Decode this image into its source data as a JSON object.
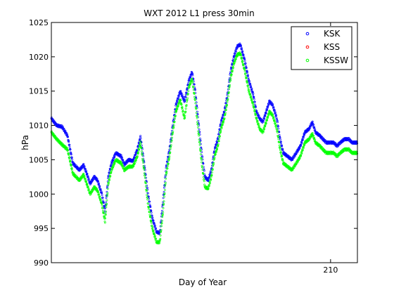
{
  "chart_data": {
    "type": "scatter",
    "title": "WXT 2012 L1 press 30min",
    "xlabel": "Day of Year",
    "ylabel": "hPa",
    "xlim": [
      184,
      212.5
    ],
    "ylim": [
      990,
      1025
    ],
    "x_ticks": [
      210
    ],
    "x_tick_labels": [
      "210"
    ],
    "y_ticks": [
      990,
      995,
      1000,
      1005,
      1010,
      1015,
      1020,
      1025
    ],
    "y_tick_labels": [
      "990",
      "995",
      "1000",
      "1005",
      "1010",
      "1015",
      "1020",
      "1025"
    ],
    "grid": false,
    "legend_position": "top-right",
    "series": [
      {
        "name": "KSK",
        "color": "#0000ff",
        "marker": "dot"
      },
      {
        "name": "KSS",
        "color": "#ff0000",
        "marker": "dot"
      },
      {
        "name": "KSSW",
        "color": "#00ff00",
        "marker": "dot"
      }
    ],
    "x": [
      184.0,
      184.5,
      185.0,
      185.5,
      186.0,
      186.3,
      186.6,
      187.0,
      187.3,
      187.6,
      188.0,
      188.3,
      188.7,
      189.0,
      189.3,
      189.6,
      190.0,
      190.5,
      190.8,
      191.2,
      191.6,
      192.0,
      192.3,
      192.6,
      193.0,
      193.4,
      193.8,
      194.1,
      194.4,
      194.7,
      195.0,
      195.3,
      195.6,
      196.0,
      196.4,
      196.8,
      197.1,
      197.4,
      197.7,
      198.0,
      198.3,
      198.6,
      198.9,
      199.2,
      199.5,
      199.8,
      200.1,
      200.4,
      200.7,
      201.0,
      201.3,
      201.6,
      202.0,
      202.4,
      202.8,
      203.1,
      203.4,
      203.7,
      204.0,
      204.3,
      204.6,
      205.0,
      205.3,
      205.6,
      206.0,
      206.4,
      206.8,
      207.2,
      207.6,
      208.0,
      208.3,
      208.6,
      209.0,
      209.3,
      209.6,
      210.0,
      210.3,
      210.6,
      210.9,
      211.3,
      211.7,
      212.0,
      212.3,
      212.5
    ],
    "ksk": [
      1011.0,
      1010.0,
      1009.8,
      1008.5,
      1004.5,
      1004.0,
      1003.5,
      1004.2,
      1003.0,
      1001.5,
      1002.5,
      1002.0,
      1000.0,
      997.5,
      1002.5,
      1004.5,
      1006.0,
      1005.5,
      1004.3,
      1005.0,
      1004.8,
      1006.5,
      1008.3,
      1005.0,
      1000.0,
      996.5,
      994.5,
      994.3,
      999.0,
      1004.0,
      1006.5,
      1010.0,
      1013.0,
      1015.0,
      1013.5,
      1016.5,
      1017.8,
      1015.0,
      1010.5,
      1006.0,
      1002.5,
      1002.0,
      1003.5,
      1006.5,
      1008.0,
      1010.5,
      1012.0,
      1014.5,
      1018.0,
      1020.0,
      1021.5,
      1021.8,
      1019.5,
      1016.5,
      1014.5,
      1012.0,
      1011.0,
      1010.5,
      1012.0,
      1013.5,
      1013.0,
      1011.0,
      1008.0,
      1006.0,
      1005.5,
      1005.0,
      1006.0,
      1007.0,
      1009.0,
      1009.5,
      1010.5,
      1009.0,
      1008.5,
      1008.0,
      1007.5,
      1007.5,
      1007.5,
      1007.0,
      1007.5,
      1008.0,
      1008.0,
      1007.5,
      1007.5,
      1007.5
    ],
    "kssw": [
      1009.0,
      1008.0,
      1007.2,
      1006.5,
      1003.0,
      1002.5,
      1002.0,
      1002.8,
      1001.5,
      1000.0,
      1001.0,
      1000.5,
      998.5,
      996.0,
      1001.5,
      1003.5,
      1005.0,
      1004.5,
      1003.5,
      1004.0,
      1004.0,
      1005.5,
      1007.5,
      1004.0,
      998.5,
      995.0,
      993.0,
      993.0,
      997.5,
      1003.0,
      1005.5,
      1009.0,
      1012.0,
      1013.8,
      1011.0,
      1015.5,
      1016.8,
      1013.5,
      1009.0,
      1004.5,
      1001.0,
      1000.8,
      1002.5,
      1005.5,
      1007.0,
      1009.5,
      1011.0,
      1013.5,
      1017.0,
      1019.0,
      1020.3,
      1020.5,
      1018.0,
      1015.0,
      1013.0,
      1011.0,
      1009.5,
      1009.0,
      1010.5,
      1012.0,
      1011.5,
      1009.5,
      1006.5,
      1004.5,
      1004.0,
      1003.5,
      1004.5,
      1005.5,
      1007.5,
      1008.0,
      1008.8,
      1007.5,
      1007.0,
      1006.5,
      1006.0,
      1006.0,
      1006.0,
      1005.5,
      1006.0,
      1006.5,
      1006.5,
      1006.0,
      1006.0,
      1006.0
    ]
  }
}
